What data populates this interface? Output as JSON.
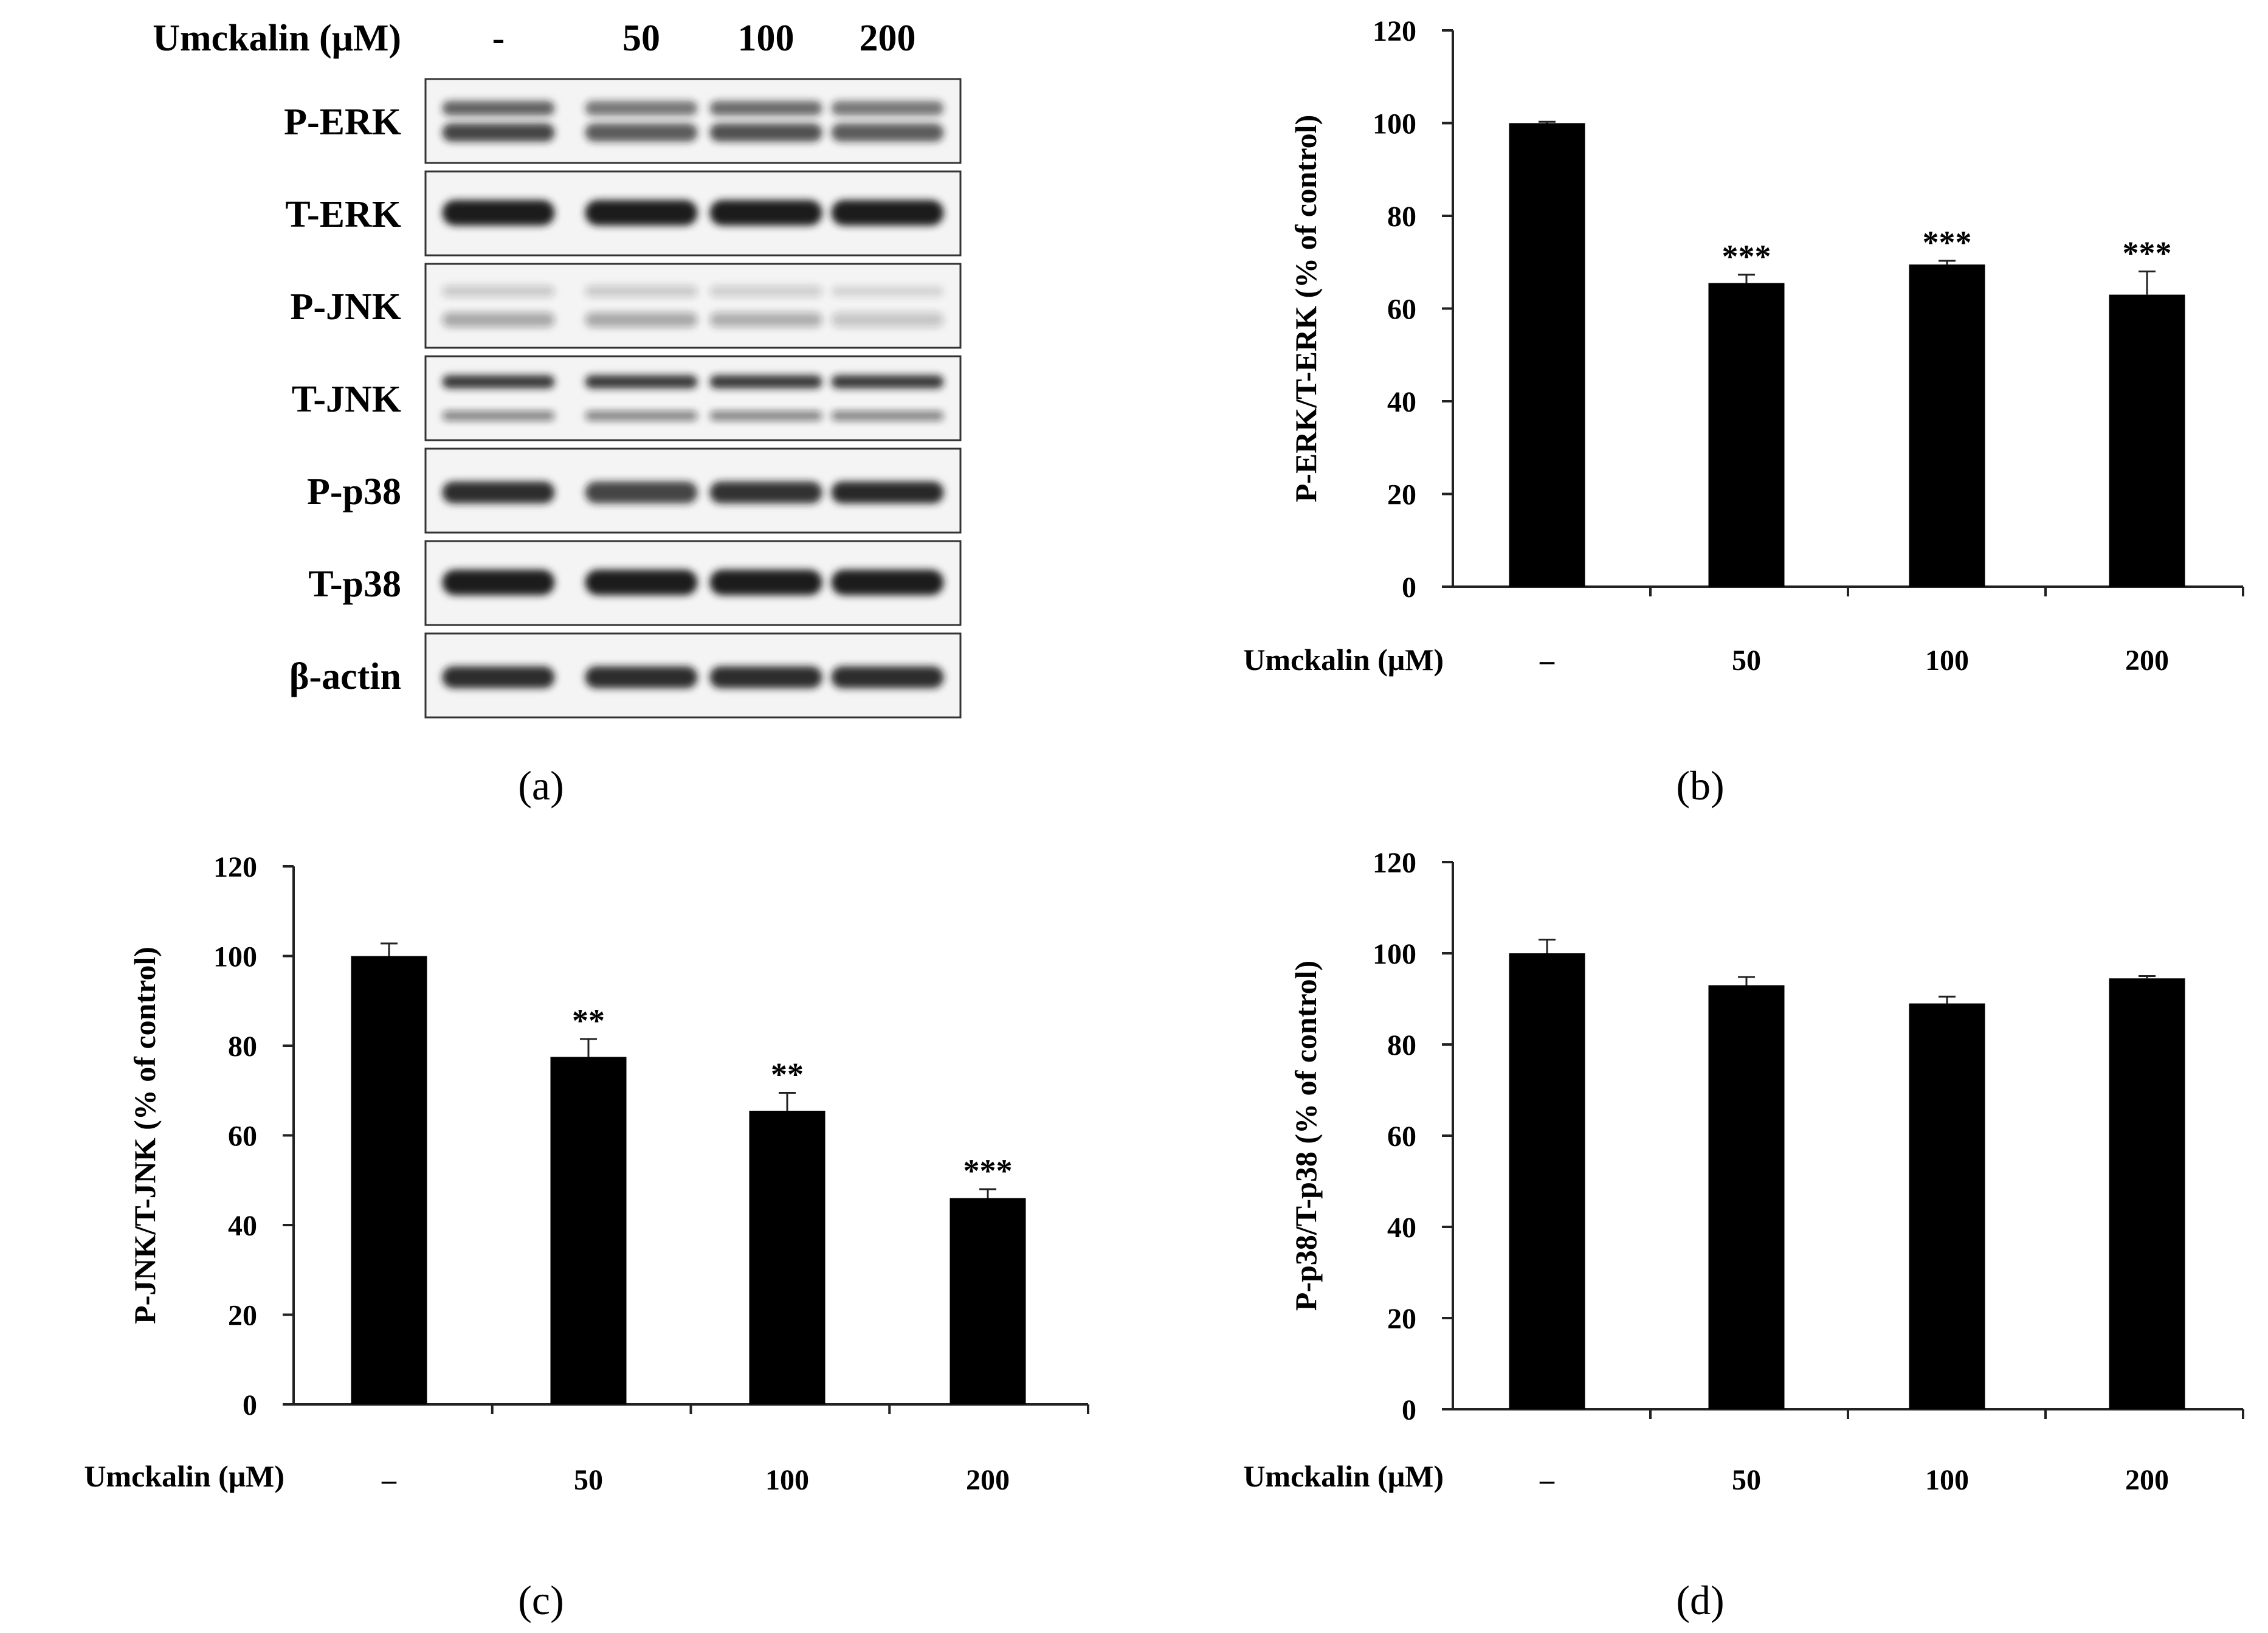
{
  "colors": {
    "bar": "#000000",
    "axis": "#222222",
    "band": "#1a1a1a",
    "frame": "#333333"
  },
  "panels": {
    "a": {
      "label": "(a)",
      "treatment_label": "Umckalin (μM)",
      "lanes": [
        "-",
        "50",
        "100",
        "200"
      ],
      "blots": [
        {
          "name": "P-ERK",
          "pattern": "doublet",
          "intensity": [
            0.8,
            0.7,
            0.75,
            0.7
          ]
        },
        {
          "name": "T-ERK",
          "pattern": "single-strong",
          "intensity": [
            1.0,
            1.0,
            1.0,
            1.0
          ]
        },
        {
          "name": "P-JNK",
          "pattern": "faint-doublet",
          "intensity": [
            0.35,
            0.35,
            0.32,
            0.22
          ]
        },
        {
          "name": "T-JNK",
          "pattern": "doublet-thin",
          "intensity": [
            0.85,
            0.85,
            0.85,
            0.85
          ]
        },
        {
          "name": "P-p38",
          "pattern": "single",
          "intensity": [
            0.9,
            0.8,
            0.88,
            0.95
          ]
        },
        {
          "name": "T-p38",
          "pattern": "single-strong",
          "intensity": [
            1.0,
            1.0,
            1.0,
            1.0
          ]
        },
        {
          "name": "β-actin",
          "pattern": "single",
          "intensity": [
            0.9,
            0.9,
            0.9,
            0.9
          ]
        }
      ]
    },
    "b": {
      "label": "(b)"
    },
    "c": {
      "label": "(c)"
    },
    "d": {
      "label": "(d)"
    }
  },
  "chart_data": [
    {
      "id": "b",
      "type": "bar",
      "categories": [
        "–",
        "50",
        "100",
        "200"
      ],
      "values": [
        100,
        65.5,
        69.5,
        63
      ],
      "errors": [
        0.3,
        1.8,
        0.8,
        5
      ],
      "significance": [
        "",
        "***",
        "***",
        "***"
      ],
      "ylabel": "P-ERK/T-ERK (% of control)",
      "xlabel": "Umckalin (μM)",
      "ylim": [
        0,
        120
      ],
      "yticks": [
        0,
        20,
        40,
        60,
        80,
        100,
        120
      ],
      "grid": false
    },
    {
      "id": "c",
      "type": "bar",
      "categories": [
        "–",
        "50",
        "100",
        "200"
      ],
      "values": [
        100,
        77.5,
        65.5,
        46
      ],
      "errors": [
        2.8,
        4,
        4,
        2
      ],
      "significance": [
        "",
        "**",
        "**",
        "***"
      ],
      "ylabel": "P-JNK/T-JNK (% of control)",
      "xlabel": "Umckalin (μM)",
      "ylim": [
        0,
        120
      ],
      "yticks": [
        0,
        20,
        40,
        60,
        80,
        100,
        120
      ],
      "grid": false
    },
    {
      "id": "d",
      "type": "bar",
      "categories": [
        "–",
        "50",
        "100",
        "200"
      ],
      "values": [
        100,
        93,
        89,
        94.5
      ],
      "errors": [
        3,
        1.8,
        1.5,
        0.5
      ],
      "significance": [
        "",
        "",
        "",
        ""
      ],
      "ylabel": "P-p38/T-p38 (% of control)",
      "xlabel": "Umckalin (μM)",
      "ylim": [
        0,
        120
      ],
      "yticks": [
        0,
        20,
        40,
        60,
        80,
        100,
        120
      ],
      "grid": false
    }
  ]
}
